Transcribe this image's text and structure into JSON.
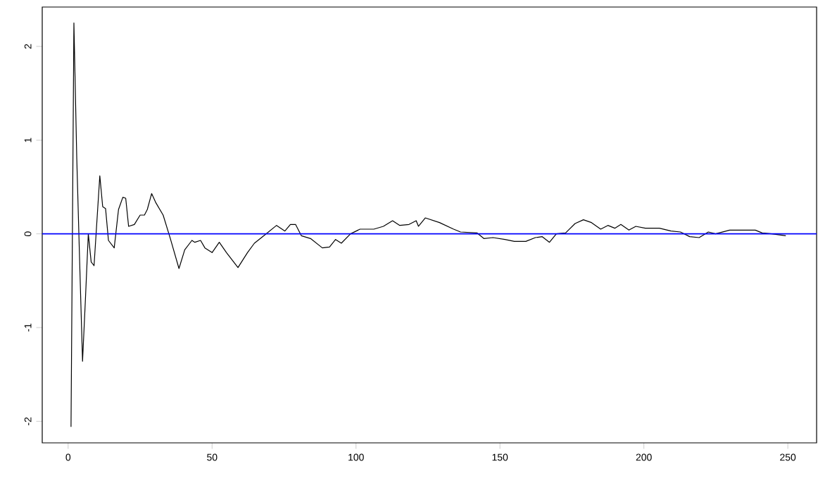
{
  "chart_data": {
    "type": "line",
    "xlim": [
      -9,
      260
    ],
    "ylim": [
      -2.23,
      2.42
    ],
    "xticks": [
      0,
      50,
      100,
      150,
      200,
      250
    ],
    "yticks": [
      -2,
      -1,
      0,
      1,
      2
    ],
    "grid": false,
    "marker": "none",
    "line_style": "solid",
    "ref_lines": [
      {
        "axis": "y",
        "value": 0,
        "color": "#0000ff"
      }
    ],
    "series": [
      {
        "color": "#000000",
        "x": [
          1,
          2,
          3,
          4,
          5,
          6,
          7,
          8,
          9,
          11,
          12,
          13,
          14,
          16,
          17.5,
          19,
          20,
          21,
          23,
          25,
          26.5,
          27.5,
          29,
          30.5,
          33,
          35.5,
          38.5,
          40.5,
          43,
          44,
          46,
          47.5,
          50,
          52.5,
          55,
          59,
          62.3,
          64.7,
          68,
          72.4,
          75.3,
          77.2,
          79,
          81,
          84.2,
          88.3,
          90.8,
          92.9,
          94.9,
          98.1,
          101.4,
          106.2,
          109.5,
          112.7,
          115.2,
          118.4,
          120.9,
          121.7,
          124.1,
          129,
          133.9,
          136.3,
          142,
          144.4,
          147.6,
          151.7,
          155,
          159,
          162.3,
          164.7,
          167.2,
          169.6,
          172.8,
          176.1,
          179,
          181.8,
          185,
          187.5,
          189.9,
          192,
          194.8,
          197.2,
          200.5,
          205.4,
          209.4,
          212.7,
          215.9,
          219.2,
          222.4,
          224.9,
          229.8,
          234.6,
          238.7,
          241.1,
          244.4,
          249.3
        ],
        "values": [
          -2.06,
          2.25,
          0.8,
          -0.3,
          -1.36,
          -0.7,
          0,
          -0.3,
          -0.34,
          0.62,
          0.29,
          0.27,
          -0.07,
          -0.15,
          0.26,
          0.39,
          0.38,
          0.08,
          0.1,
          0.2,
          0.2,
          0.26,
          0.43,
          0.33,
          0.2,
          -0.05,
          -0.37,
          -0.17,
          -0.07,
          -0.09,
          -0.07,
          -0.15,
          -0.2,
          -0.09,
          -0.2,
          -0.36,
          -0.2,
          -0.1,
          -0.02,
          0.09,
          0.03,
          0.1,
          0.1,
          -0.02,
          -0.05,
          -0.15,
          -0.14,
          -0.06,
          -0.1,
          0,
          0.05,
          0.05,
          0.08,
          0.14,
          0.09,
          0.1,
          0.14,
          0.08,
          0.17,
          0.12,
          0.05,
          0.02,
          0.01,
          -0.05,
          -0.04,
          -0.06,
          -0.08,
          -0.08,
          -0.04,
          -0.03,
          -0.09,
          0,
          0.01,
          0.11,
          0.15,
          0.12,
          0.05,
          0.09,
          0.06,
          0.1,
          0.04,
          0.08,
          0.06,
          0.06,
          0.03,
          0.02,
          -0.03,
          -0.04,
          0.02,
          0,
          0.04,
          0.04,
          0.04,
          0.01,
          0,
          -0.02
        ]
      }
    ]
  }
}
